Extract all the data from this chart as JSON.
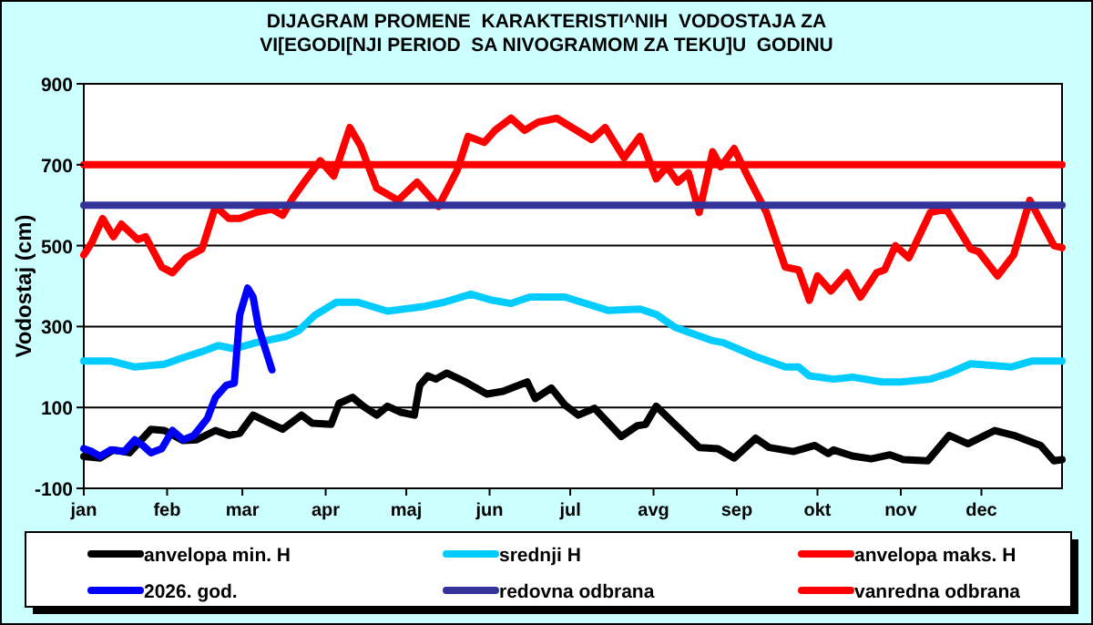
{
  "chart_data": {
    "type": "line",
    "title": "DIJAGRAM PROMENE  KARAKTERISTI^NIH  VODOSTAJA ZA VI[EGODI[NJI PERIOD  SA NIVOGRAMOM ZA TEKU]U  GODINU",
    "ylabel": "Vodostaj (cm)",
    "xlim": [
      "--01-01",
      "--12-31"
    ],
    "xticks": [
      {
        "value": "--01-01",
        "label": "jan"
      },
      {
        "value": "--02-01",
        "label": "feb"
      },
      {
        "value": "--03-01",
        "label": "mar"
      },
      {
        "value": "--04-01",
        "label": "apr"
      },
      {
        "value": "--05-01",
        "label": "maj"
      },
      {
        "value": "--06-01",
        "label": "jun"
      },
      {
        "value": "--07-01",
        "label": "jul"
      },
      {
        "value": "--08-01",
        "label": "avg"
      },
      {
        "value": "--09-01",
        "label": "sep"
      },
      {
        "value": "--10-01",
        "label": "okt"
      },
      {
        "value": "--11-01",
        "label": "nov"
      },
      {
        "value": "--12-01",
        "label": "dec"
      }
    ],
    "ylim": [
      -100,
      900
    ],
    "yticks": [
      -100,
      100,
      300,
      500,
      700,
      900
    ],
    "grid": "y",
    "legend": "bottom",
    "marker": "none",
    "line_style": "solid",
    "series": [
      {
        "name": "anvelopa min. H",
        "color": "#000000",
        "x": [
          "--01-01",
          "--01-07",
          "--01-12",
          "--01-18",
          "--01-26",
          "--01-31",
          "--02-07",
          "--02-12",
          "--02-19",
          "--02-24",
          "--02-28",
          "--03-05",
          "--03-10",
          "--03-16",
          "--03-23",
          "--03-27",
          "--04-03",
          "--04-06",
          "--04-11",
          "--04-15",
          "--04-20",
          "--04-24",
          "--04-29",
          "--05-04",
          "--05-06",
          "--05-09",
          "--05-12",
          "--05-16",
          "--05-23",
          "--05-31",
          "--06-06",
          "--06-15",
          "--06-18",
          "--06-24",
          "--06-29",
          "--07-04",
          "--07-10",
          "--07-20",
          "--07-26",
          "--07-29",
          "--08-02",
          "--08-09",
          "--08-18",
          "--08-25",
          "--08-31",
          "--09-08",
          "--09-13",
          "--09-22",
          "--09-30",
          "--10-05",
          "--10-07",
          "--10-14",
          "--10-21",
          "--10-28",
          "--11-02",
          "--11-11",
          "--11-19",
          "--11-26",
          "--12-06",
          "--12-13",
          "--12-23",
          "--12-28",
          "--12-31"
        ],
        "values": [
          -21,
          -25,
          -5,
          -12,
          46,
          43,
          18,
          20,
          43,
          31,
          36,
          81,
          65,
          46,
          81,
          61,
          58,
          110,
          125,
          103,
          81,
          103,
          88,
          81,
          155,
          178,
          170,
          185,
          163,
          133,
          140,
          163,
          122,
          148,
          106,
          81,
          98,
          28,
          55,
          58,
          103,
          58,
          1,
          -2,
          -25,
          24,
          1,
          -9,
          6,
          -14,
          -5,
          -20,
          -27,
          -17,
          -29,
          -32,
          31,
          10,
          43,
          31,
          6,
          -32,
          -29
        ]
      },
      {
        "name": "srednji H",
        "color": "#00ccff",
        "x": [
          "--01-01",
          "--01-11",
          "--01-20",
          "--01-31",
          "--02-07",
          "--02-14",
          "--02-20",
          "--02-26",
          "--03-06",
          "--03-17",
          "--03-22",
          "--03-28",
          "--04-05",
          "--04-13",
          "--04-24",
          "--05-08",
          "--05-15",
          "--05-25",
          "--06-02",
          "--06-09",
          "--06-16",
          "--06-29",
          "--07-15",
          "--07-27",
          "--08-02",
          "--08-09",
          "--08-23",
          "--08-27",
          "--09-08",
          "--09-19",
          "--09-24",
          "--09-28",
          "--10-07",
          "--10-14",
          "--10-25",
          "--11-01",
          "--11-12",
          "--11-19",
          "--11-27",
          "--12-12",
          "--12-20",
          "--12-31"
        ],
        "values": [
          215,
          215,
          200,
          207,
          223,
          238,
          253,
          245,
          260,
          275,
          290,
          328,
          360,
          360,
          338,
          350,
          360,
          380,
          365,
          357,
          373,
          373,
          340,
          343,
          330,
          298,
          265,
          260,
          226,
          200,
          200,
          178,
          170,
          175,
          163,
          163,
          170,
          185,
          208,
          200,
          215,
          215
        ]
      },
      {
        "name": "anvelopa maks. H",
        "color": "#ff0000",
        "x": [
          "--01-01",
          "--01-04",
          "--01-08",
          "--01-12",
          "--01-15",
          "--01-21",
          "--01-24",
          "--01-30",
          "--02-03",
          "--02-08",
          "--02-14",
          "--02-19",
          "--02-24",
          "--02-28",
          "--03-06",
          "--03-12",
          "--03-16",
          "--03-20",
          "--03-24",
          "--03-30",
          "--04-04",
          "--04-10",
          "--04-14",
          "--04-20",
          "--04-24",
          "--04-28",
          "--05-05",
          "--05-13",
          "--05-20",
          "--05-24",
          "--05-30",
          "--06-03",
          "--06-09",
          "--06-14",
          "--06-19",
          "--06-26",
          "--07-09",
          "--07-14",
          "--07-21",
          "--07-27",
          "--08-02",
          "--08-06",
          "--08-10",
          "--08-14",
          "--08-18",
          "--08-23",
          "--08-26",
          "--08-31",
          "--09-05",
          "--09-12",
          "--09-19",
          "--09-24",
          "--09-28",
          "--10-01",
          "--10-06",
          "--10-12",
          "--10-17",
          "--10-23",
          "--10-26",
          "--10-30",
          "--11-04",
          "--11-12",
          "--11-18",
          "--11-27",
          "--11-30",
          "--12-07",
          "--12-13",
          "--12-19",
          "--12-28",
          "--12-31"
        ],
        "values": [
          477,
          508,
          567,
          522,
          553,
          515,
          522,
          447,
          433,
          470,
          492,
          597,
          567,
          567,
          582,
          590,
          575,
          620,
          657,
          710,
          672,
          792,
          747,
          642,
          627,
          612,
          657,
          597,
          687,
          770,
          755,
          785,
          815,
          785,
          805,
          815,
          762,
          792,
          717,
          770,
          665,
          695,
          657,
          680,
          582,
          732,
          695,
          740,
          672,
          582,
          447,
          440,
          365,
          425,
          388,
          433,
          373,
          433,
          440,
          500,
          470,
          582,
          590,
          492,
          485,
          425,
          477,
          612,
          500,
          495
        ]
      },
      {
        "name": "2026. god.",
        "color": "#0000ff",
        "x": [
          "--01-01",
          "--01-04",
          "--01-07",
          "--01-11",
          "--01-16",
          "--01-20",
          "--01-23",
          "--01-26",
          "--01-30",
          "--02-03",
          "--02-07",
          "--02-11",
          "--02-16",
          "--02-19",
          "--02-23",
          "--02-26",
          "--02-28",
          "--03-03",
          "--03-05",
          "--03-07",
          "--03-12"
        ],
        "values": [
          -2,
          -9,
          -21,
          -5,
          -9,
          20,
          6,
          -12,
          -2,
          43,
          20,
          31,
          73,
          125,
          155,
          160,
          328,
          395,
          373,
          298,
          193
        ]
      },
      {
        "name": "redovna odbrana",
        "color": "#333399",
        "x": [
          "--01-01",
          "--12-31"
        ],
        "values": [
          600,
          600
        ]
      },
      {
        "name": "vanredna odbrana",
        "color": "#ff0000",
        "x": [
          "--01-01",
          "--12-31"
        ],
        "values": [
          700,
          700
        ]
      }
    ]
  }
}
